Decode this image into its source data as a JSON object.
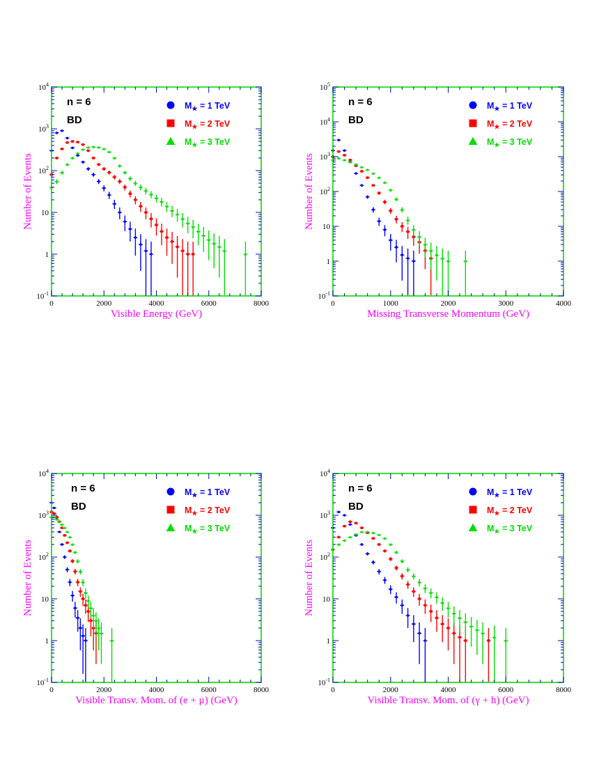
{
  "chart_data": [
    {
      "type": "scatter",
      "title": "",
      "annotations": [
        "n = 6",
        "BD"
      ],
      "xlabel": "Visible Energy (GeV)",
      "ylabel": "Number of Events",
      "xlim": [
        0,
        8000
      ],
      "ylim": [
        0.1,
        10000
      ],
      "yscale": "log",
      "xticks": [
        "0",
        "2000",
        "4000",
        "6000",
        "8000"
      ],
      "ytick_exponents": [
        -1,
        0,
        1,
        2,
        3,
        4
      ],
      "legend": "top-right",
      "series": [
        {
          "name": "M★ = 1 TeV",
          "label_main": "M",
          "label_sub": "★",
          "label_rest": " = 1 TeV",
          "marker": "circle",
          "color": "#0000ff",
          "x": [
            0,
            200,
            400,
            600,
            800,
            1000,
            1200,
            1400,
            1600,
            1800,
            2000,
            2200,
            2400,
            2600,
            2800,
            3000,
            3200,
            3400,
            3600,
            3800
          ],
          "y": [
            300,
            800,
            900,
            600,
            350,
            230,
            160,
            110,
            80,
            55,
            38,
            26,
            16,
            10,
            6,
            4,
            2.5,
            1.7,
            1.2,
            1
          ]
        },
        {
          "name": "M★ = 2 TeV",
          "label_main": "M",
          "label_sub": "★",
          "label_rest": " = 2 TeV",
          "marker": "square",
          "color": "#ff0000",
          "x": [
            0,
            200,
            400,
            600,
            800,
            1000,
            1200,
            1400,
            1600,
            1800,
            2000,
            2200,
            2400,
            2600,
            2800,
            3000,
            3200,
            3400,
            3600,
            3800,
            4000,
            4200,
            4400,
            4600,
            4800,
            5000,
            5200,
            5400
          ],
          "y": [
            80,
            200,
            330,
            470,
            500,
            480,
            420,
            300,
            200,
            140,
            110,
            90,
            70,
            55,
            40,
            28,
            20,
            14,
            10,
            7,
            5,
            3.5,
            2.5,
            2,
            1.5,
            1.2,
            1,
            1
          ]
        },
        {
          "name": "M★ = 3 TeV",
          "label_main": "M",
          "label_sub": "★",
          "label_rest": " = 3 TeV",
          "marker": "triangle",
          "color": "#00dd00",
          "x": [
            0,
            200,
            400,
            600,
            800,
            1000,
            1200,
            1400,
            1600,
            1800,
            2000,
            2200,
            2400,
            2600,
            2800,
            3000,
            3200,
            3400,
            3600,
            3800,
            4000,
            4200,
            4400,
            4600,
            4800,
            5000,
            5200,
            5400,
            5600,
            5800,
            6000,
            6200,
            6400,
            6600,
            7400
          ],
          "y": [
            40,
            55,
            90,
            140,
            200,
            260,
            320,
            360,
            370,
            360,
            330,
            280,
            200,
            130,
            90,
            65,
            50,
            40,
            33,
            27,
            22,
            18,
            14,
            11,
            9,
            7,
            5.5,
            4.5,
            3.5,
            2.8,
            2.2,
            1.8,
            1.5,
            1.2,
            1
          ]
        }
      ]
    },
    {
      "type": "scatter",
      "title": "",
      "annotations": [
        "n = 6",
        "BD"
      ],
      "xlabel": "Missing Transverse Momentum (GeV)",
      "ylabel": "Number of Events",
      "xlim": [
        0,
        4000
      ],
      "ylim": [
        0.1,
        100000
      ],
      "yscale": "log",
      "xticks": [
        "0",
        "1000",
        "2000",
        "3000",
        "4000"
      ],
      "ytick_exponents": [
        -1,
        0,
        1,
        2,
        3,
        4,
        5
      ],
      "legend": "top-right",
      "series": [
        {
          "name": "M★ = 1 TeV",
          "label_main": "M",
          "label_sub": "★",
          "label_rest": " = 1 TeV",
          "marker": "circle",
          "color": "#0000ff",
          "x": [
            0,
            100,
            200,
            300,
            400,
            500,
            600,
            700,
            800,
            900,
            1000,
            1100,
            1200,
            1300,
            1400
          ],
          "y": [
            1500,
            3000,
            1500,
            700,
            330,
            150,
            70,
            30,
            14,
            8,
            4,
            2.5,
            1.5,
            1.2,
            1
          ]
        },
        {
          "name": "M★ = 2 TeV",
          "label_main": "M",
          "label_sub": "★",
          "label_rest": " = 2 TeV",
          "marker": "square",
          "color": "#ff0000",
          "x": [
            0,
            100,
            200,
            300,
            400,
            500,
            600,
            700,
            800,
            900,
            1000,
            1100,
            1200,
            1300,
            1400,
            1500,
            1600,
            1700
          ],
          "y": [
            1000,
            1400,
            1100,
            800,
            550,
            380,
            250,
            150,
            90,
            50,
            28,
            16,
            10,
            7,
            5,
            3.5,
            2,
            1.2
          ]
        },
        {
          "name": "M★ = 3 TeV",
          "label_main": "M",
          "label_sub": "★",
          "label_rest": " = 3 TeV",
          "marker": "triangle",
          "color": "#00dd00",
          "x": [
            0,
            100,
            200,
            300,
            400,
            500,
            600,
            700,
            800,
            900,
            1000,
            1100,
            1200,
            1300,
            1400,
            1500,
            1600,
            1700,
            1800,
            1900,
            2000,
            2300
          ],
          "y": [
            800,
            900,
            800,
            700,
            600,
            500,
            420,
            330,
            250,
            180,
            110,
            60,
            30,
            15,
            8,
            5,
            3,
            2,
            1.5,
            1.2,
            1,
            1
          ]
        }
      ]
    },
    {
      "type": "scatter",
      "title": "",
      "annotations": [
        "n = 6",
        "BD"
      ],
      "xlabel": "Visible Transv. Mom. of (e + μ) (GeV)",
      "ylabel": "Number of Events",
      "xlim": [
        0,
        8000
      ],
      "ylim": [
        0.1,
        10000
      ],
      "yscale": "log",
      "xticks": [
        "0",
        "2000",
        "4000",
        "6000",
        "8000"
      ],
      "ytick_exponents": [
        -1,
        0,
        1,
        2,
        3,
        4
      ],
      "legend": "top-right",
      "series": [
        {
          "name": "M★ = 1 TeV",
          "label_main": "M",
          "label_sub": "★",
          "label_rest": " = 1 TeV",
          "marker": "circle",
          "color": "#0000ff",
          "x": [
            0,
            100,
            200,
            300,
            400,
            500,
            600,
            700,
            800,
            900,
            1000,
            1100,
            1200,
            1300
          ],
          "y": [
            2000,
            1500,
            800,
            400,
            200,
            100,
            50,
            25,
            12,
            6,
            3.5,
            2,
            1.3,
            1
          ]
        },
        {
          "name": "M★ = 2 TeV",
          "label_main": "M",
          "label_sub": "★",
          "label_rest": " = 2 TeV",
          "marker": "square",
          "color": "#ff0000",
          "x": [
            0,
            100,
            200,
            300,
            400,
            500,
            600,
            700,
            800,
            900,
            1000,
            1100,
            1200,
            1300,
            1400,
            1500,
            1600,
            1700
          ],
          "y": [
            1200,
            1100,
            900,
            700,
            500,
            330,
            220,
            140,
            80,
            45,
            25,
            15,
            10,
            7,
            5,
            3,
            2,
            1.5
          ]
        },
        {
          "name": "M★ = 3 TeV",
          "label_main": "M",
          "label_sub": "★",
          "label_rest": " = 3 TeV",
          "marker": "triangle",
          "color": "#00dd00",
          "x": [
            0,
            100,
            200,
            300,
            400,
            500,
            600,
            700,
            800,
            900,
            1000,
            1100,
            1200,
            1300,
            1400,
            1500,
            1600,
            1700,
            1800,
            1900,
            2300
          ],
          "y": [
            900,
            900,
            800,
            700,
            600,
            500,
            400,
            300,
            200,
            130,
            80,
            45,
            25,
            14,
            9,
            6,
            4,
            3,
            2,
            1.5,
            1
          ]
        }
      ]
    },
    {
      "type": "scatter",
      "title": "",
      "annotations": [
        "n = 6",
        "BD"
      ],
      "xlabel": "Visible Transv. Mom. of (γ + h) (GeV)",
      "ylabel": "Number of Events",
      "xlim": [
        0,
        8000
      ],
      "ylim": [
        0.1,
        10000
      ],
      "yscale": "log",
      "xticks": [
        "0",
        "2000",
        "4000",
        "6000",
        "8000"
      ],
      "ytick_exponents": [
        -1,
        0,
        1,
        2,
        3,
        4
      ],
      "legend": "top-right",
      "series": [
        {
          "name": "M★ = 1 TeV",
          "label_main": "M",
          "label_sub": "★",
          "label_rest": " = 1 TeV",
          "marker": "circle",
          "color": "#0000ff",
          "x": [
            0,
            200,
            400,
            600,
            800,
            1000,
            1200,
            1400,
            1600,
            1800,
            2000,
            2200,
            2400,
            2600,
            2800,
            3000,
            3200
          ],
          "y": [
            500,
            1200,
            1000,
            600,
            330,
            200,
            120,
            75,
            45,
            28,
            17,
            11,
            7,
            4,
            2.5,
            1.5,
            1
          ]
        },
        {
          "name": "M★ = 2 TeV",
          "label_main": "M",
          "label_sub": "★",
          "label_rest": " = 2 TeV",
          "marker": "square",
          "color": "#ff0000",
          "x": [
            0,
            200,
            400,
            600,
            800,
            1000,
            1200,
            1400,
            1600,
            1800,
            2000,
            2200,
            2400,
            2600,
            2800,
            3000,
            3200,
            3400,
            3600,
            3800,
            4000,
            4200,
            4400,
            4600,
            5400
          ],
          "y": [
            150,
            300,
            550,
            700,
            650,
            500,
            380,
            280,
            200,
            140,
            90,
            55,
            35,
            22,
            15,
            10,
            7,
            5,
            3.5,
            2.5,
            2,
            1.5,
            1.2,
            1,
            1
          ]
        },
        {
          "name": "M★ = 3 TeV",
          "label_main": "M",
          "label_sub": "★",
          "label_rest": " = 3 TeV",
          "marker": "triangle",
          "color": "#00dd00",
          "x": [
            0,
            200,
            400,
            600,
            800,
            1000,
            1200,
            1400,
            1600,
            1800,
            2000,
            2200,
            2400,
            2600,
            2800,
            3000,
            3200,
            3400,
            3600,
            3800,
            4000,
            4200,
            4400,
            4600,
            4800,
            5000,
            5200,
            5600,
            6000
          ],
          "y": [
            150,
            200,
            250,
            300,
            350,
            400,
            400,
            380,
            340,
            280,
            200,
            130,
            80,
            50,
            35,
            25,
            18,
            14,
            11,
            8,
            6,
            4.5,
            3.5,
            2.8,
            2.2,
            1.8,
            1.5,
            1.2,
            1
          ]
        }
      ]
    }
  ]
}
